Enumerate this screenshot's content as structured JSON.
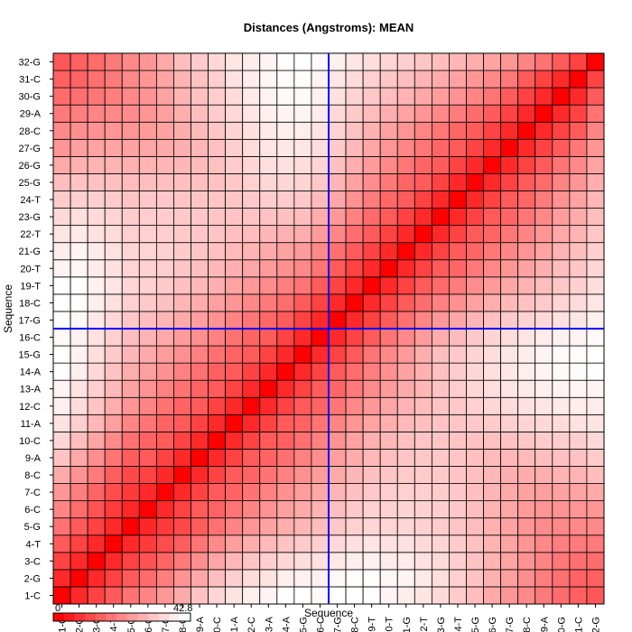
{
  "chart_data": {
    "type": "heatmap",
    "title": "Distances (Angstroms):  MEAN",
    "xlabel": "Sequence",
    "ylabel": "Sequence",
    "labels": [
      "1-C",
      "2-G",
      "3-C",
      "4-T",
      "5-G",
      "6-C",
      "7-C",
      "8-C",
      "9-A",
      "10-C",
      "11-A",
      "12-C",
      "13-A",
      "14-A",
      "15-G",
      "16-C",
      "17-G",
      "18-C",
      "19-T",
      "20-T",
      "21-G",
      "22-T",
      "23-G",
      "24-T",
      "25-G",
      "26-G",
      "27-G",
      "28-C",
      "29-A",
      "30-G",
      "31-C",
      "32-G"
    ],
    "value_range": [
      0,
      42.8
    ],
    "scale_min_label": "0",
    "scale_max_label": "42.8",
    "crosshair_after": "16-C",
    "colors": {
      "low": "#ff0000",
      "high": "#ffffff",
      "crosshair": "#0000ff",
      "grid": "#000000"
    },
    "matrix_note_omitted": false,
    "values": [
      [
        0,
        5.6,
        9.6,
        13.6,
        17.7,
        20.8,
        23.9,
        27.3,
        31.7,
        35.1,
        37.7,
        40,
        40.6,
        42.6,
        42.8,
        41.7,
        42.8,
        42.8,
        42.7,
        40.7,
        39.5,
        37.8,
        35.7,
        33.2,
        30.6,
        27.1,
        23.8,
        21.2,
        18.8,
        16.5,
        14.4,
        13
      ],
      [
        5.6,
        0,
        5.6,
        9.6,
        13.6,
        16.4,
        19.6,
        23.2,
        27,
        30.9,
        33.8,
        36.4,
        37.7,
        39.7,
        40.2,
        40.2,
        41.5,
        42.2,
        42.5,
        40.9,
        40.5,
        38.7,
        36.7,
        34.2,
        31.7,
        28.6,
        25.4,
        22.5,
        19.8,
        17.2,
        14.9,
        14.4
      ],
      [
        9.6,
        5.6,
        0,
        5.6,
        9.6,
        12.1,
        15.3,
        18.8,
        22.4,
        26.3,
        29.6,
        32.2,
        33.9,
        35.4,
        36.6,
        37.2,
        38.6,
        39.7,
        40.2,
        39.1,
        39,
        37.3,
        35.9,
        33.9,
        31.5,
        28.8,
        26.1,
        23.2,
        20.7,
        18.4,
        17.2,
        16.5
      ],
      [
        13.6,
        9.6,
        5.6,
        0,
        5.6,
        8.2,
        11.1,
        14.1,
        17.8,
        21.7,
        25.2,
        27.8,
        30,
        31.8,
        33.1,
        34.1,
        35.8,
        37.1,
        37.9,
        37.3,
        37.2,
        35.9,
        34.8,
        33.2,
        31.2,
        28.8,
        26.2,
        23.6,
        21.3,
        19.8,
        18.8,
        18.8
      ],
      [
        17.7,
        13.6,
        9.6,
        5.6,
        0,
        5.1,
        8.3,
        10.6,
        13.9,
        17.4,
        20.8,
        23.6,
        25.9,
        27.9,
        29.4,
        30.6,
        32.5,
        34.1,
        35.3,
        35.1,
        35.3,
        34.2,
        33.4,
        32.1,
        30.5,
        28.3,
        25.9,
        23.5,
        21.9,
        21.3,
        21.2,
        21.2
      ],
      [
        20.8,
        16.4,
        12.1,
        8.2,
        5.1,
        0,
        5.6,
        9.6,
        13.6,
        14.9,
        18,
        20.7,
        23.2,
        25.5,
        27.3,
        28.9,
        31.1,
        32.9,
        34.3,
        34.5,
        34.9,
        34.2,
        33.6,
        32.5,
        30.9,
        28.8,
        26.6,
        24.7,
        23.5,
        23.2,
        23.6,
        23.8
      ],
      [
        23.9,
        19.6,
        15.3,
        11.1,
        8.3,
        5.6,
        0,
        5.6,
        9.6,
        13.6,
        15.1,
        17.7,
        20.3,
        22.8,
        25,
        26.9,
        29.2,
        31.3,
        32.9,
        33.5,
        34.1,
        33.7,
        33.3,
        32.5,
        31.1,
        29.2,
        27.3,
        25.9,
        25.4,
        25.9,
        26.1,
        27.1
      ],
      [
        27.3,
        23.2,
        18.8,
        14.1,
        10.6,
        9.6,
        5.6,
        0,
        5.6,
        9.6,
        13.6,
        14.9,
        17.6,
        20.2,
        22.6,
        24.7,
        27.2,
        29.5,
        31.3,
        32.2,
        33,
        33,
        32.8,
        32.1,
        31,
        29.4,
        28.2,
        27.6,
        28,
        28.8,
        28.8,
        30.6
      ],
      [
        31.7,
        27,
        22.4,
        17.8,
        13.9,
        13.6,
        9.6,
        5.6,
        0,
        5.6,
        9.6,
        13.6,
        15,
        17.3,
        19.9,
        22.4,
        25.1,
        27.6,
        29.7,
        31,
        32.1,
        32.5,
        32.5,
        32.1,
        31.2,
        30.1,
        29.6,
        30,
        30.9,
        31.2,
        31.5,
        33.2
      ],
      [
        35.1,
        30.9,
        26.3,
        21.7,
        17.4,
        14.9,
        13.6,
        9.6,
        5.6,
        0,
        5.6,
        9.6,
        13.6,
        14.7,
        17.3,
        20.1,
        23,
        25.7,
        28.1,
        29.8,
        31.2,
        31.9,
        32.2,
        32,
        31.6,
        31.2,
        31.4,
        32.4,
        33.3,
        33.6,
        33.9,
        35.7
      ],
      [
        37.7,
        33.8,
        29.6,
        25.2,
        20.8,
        18,
        15.1,
        13.6,
        9.6,
        5.6,
        0,
        5.6,
        9.6,
        13.6,
        15,
        17.6,
        20.6,
        23.5,
        26.1,
        28.2,
        29.9,
        31.1,
        31.8,
        32.3,
        32.6,
        33.3,
        34,
        34.9,
        35.6,
        36.2,
        37.3,
        37.8
      ],
      [
        40,
        36.4,
        32.2,
        27.8,
        23.6,
        20.7,
        17.7,
        14.9,
        13.6,
        9.6,
        5.6,
        0,
        5.6,
        9.6,
        13.6,
        15.2,
        18.2,
        21.2,
        24.1,
        26.6,
        28.8,
        30.5,
        31.8,
        32.9,
        34.1,
        35.3,
        36.2,
        37.3,
        38,
        38.8,
        39.3,
        39.5
      ],
      [
        40.6,
        37.7,
        33.9,
        30,
        25.9,
        23.2,
        20.3,
        17.6,
        15,
        13.6,
        9.6,
        5.6,
        0,
        5.6,
        9.6,
        13.6,
        15.6,
        18.8,
        21.9,
        24.7,
        27.3,
        29.5,
        31.6,
        33.5,
        35.2,
        36.6,
        37.8,
        38.7,
        39.8,
        40.5,
        40.9,
        40.7
      ],
      [
        42.6,
        39.7,
        35.4,
        31.8,
        27.9,
        25.5,
        22.8,
        20.2,
        17.3,
        14.7,
        13.6,
        9.6,
        5.6,
        0,
        5.6,
        9.6,
        13.6,
        16.6,
        19.8,
        22.9,
        25.8,
        28.5,
        31.2,
        33.4,
        35.2,
        36.8,
        38.3,
        39.6,
        40.6,
        41.6,
        42,
        42.7
      ],
      [
        42.8,
        40.2,
        36.6,
        33.1,
        29.4,
        27.3,
        25,
        22.6,
        19.9,
        17.3,
        15,
        13.6,
        9.6,
        5.6,
        0,
        5.6,
        9.6,
        13.6,
        17.9,
        21.4,
        24.7,
        27.9,
        30.8,
        32.8,
        34.8,
        36.5,
        38.1,
        39.5,
        40.7,
        41.7,
        42.2,
        42.8
      ],
      [
        41.7,
        40.2,
        37.2,
        34.1,
        30.6,
        28.9,
        26.9,
        24.7,
        22.4,
        20.1,
        17.6,
        15.2,
        13.6,
        9.6,
        5.6,
        0,
        5.6,
        9.6,
        13.6,
        17.8,
        21.4,
        24.6,
        27.6,
        30.3,
        32.7,
        34.8,
        36.5,
        37.8,
        39.1,
        40.2,
        40.4,
        41.7
      ],
      [
        42.8,
        41.5,
        38.6,
        35.8,
        32.5,
        31.1,
        29.2,
        27.2,
        25.1,
        23,
        20.6,
        18.2,
        15.6,
        13.6,
        9.6,
        5.6,
        0,
        5.6,
        9.6,
        13.6,
        17.4,
        20.9,
        24,
        26.7,
        29.2,
        31.3,
        33.1,
        34.6,
        35.8,
        37.3,
        38.2,
        40
      ],
      [
        42.8,
        42.2,
        39.7,
        37.1,
        34.1,
        32.9,
        31.3,
        29.5,
        27.6,
        25.7,
        23.5,
        21.2,
        18.8,
        16.6,
        13.6,
        9.6,
        5.6,
        0,
        5.6,
        9.6,
        13.6,
        16.8,
        20,
        22.9,
        25.6,
        27.9,
        29.9,
        31.6,
        33.1,
        34.9,
        36.1,
        38.1
      ],
      [
        42.7,
        42.5,
        40.2,
        37.9,
        35.3,
        34.3,
        32.9,
        31.3,
        29.7,
        28.1,
        26.1,
        24.1,
        21.9,
        19.8,
        17.9,
        13.6,
        9.6,
        5.6,
        0,
        5.6,
        9.6,
        13.6,
        16.1,
        19.2,
        22.1,
        24.6,
        26.8,
        28.7,
        30.5,
        32.7,
        34.1,
        36.6
      ],
      [
        40.7,
        40.9,
        39.1,
        37.3,
        35.1,
        34.5,
        33.5,
        32.2,
        31,
        29.8,
        28.2,
        26.6,
        24.7,
        22.9,
        21.4,
        17.8,
        13.6,
        9.6,
        5.6,
        0,
        5.6,
        9.6,
        13.6,
        15.6,
        18.7,
        21.4,
        23.8,
        25.9,
        28.1,
        30.6,
        32.3,
        35.1
      ],
      [
        39.5,
        40.5,
        39,
        37.2,
        35.3,
        34.9,
        34.1,
        33,
        32.1,
        31.2,
        29.9,
        28.8,
        27.3,
        25.8,
        24.7,
        21.4,
        17.4,
        13.6,
        9.6,
        5.6,
        0,
        5.6,
        9.6,
        13.6,
        15.3,
        18.4,
        21,
        23.4,
        26,
        28.8,
        30.8,
        33.9
      ],
      [
        37.8,
        38.7,
        37.3,
        35.9,
        34.2,
        34.2,
        33.7,
        33,
        32.5,
        31.9,
        31.1,
        30.5,
        29.5,
        28.5,
        27.9,
        24.6,
        20.9,
        16.8,
        13.6,
        9.6,
        5.6,
        0,
        5.6,
        9.6,
        13.6,
        15.3,
        18.1,
        20.8,
        23.7,
        26.9,
        29.1,
        32.4
      ],
      [
        35.7,
        36.7,
        35.9,
        34.8,
        33.4,
        33.6,
        33.3,
        32.8,
        32.5,
        32.2,
        31.8,
        31.8,
        31.6,
        31.2,
        30.8,
        27.6,
        24,
        20,
        16.1,
        13.6,
        9.6,
        5.6,
        0,
        5.6,
        9.6,
        13.6,
        15.3,
        18.2,
        21.5,
        25,
        27.5,
        30.9
      ],
      [
        33.2,
        34.2,
        33.9,
        33.2,
        32.1,
        32.5,
        32.5,
        32.1,
        32.1,
        32,
        32.3,
        32.9,
        33.5,
        33.4,
        32.8,
        30.3,
        26.7,
        22.9,
        19.2,
        15.6,
        13.6,
        9.6,
        5.6,
        0,
        5.6,
        9.6,
        13.6,
        15.5,
        19.2,
        23,
        25.8,
        29.5
      ],
      [
        30.6,
        31.7,
        31.5,
        31.2,
        30.5,
        30.9,
        31.1,
        31,
        31.2,
        31.6,
        32.6,
        34.1,
        35.2,
        35.2,
        34.8,
        32.7,
        29.2,
        25.6,
        22.1,
        18.7,
        15.3,
        13.6,
        9.6,
        5.6,
        0,
        5.6,
        9.6,
        13.6,
        16.5,
        20.6,
        23.8,
        27.8
      ],
      [
        27.1,
        28.6,
        28.8,
        28.8,
        28.3,
        28.8,
        29.2,
        29.4,
        30.1,
        31.2,
        33.3,
        35.3,
        36.6,
        36.8,
        36.5,
        34.8,
        31.3,
        27.9,
        24.6,
        21.4,
        18.4,
        15.3,
        13.6,
        9.6,
        5.6,
        0,
        5.6,
        9.6,
        13.6,
        17.9,
        21.4,
        26
      ],
      [
        23.8,
        25.4,
        26.1,
        26.2,
        25.9,
        26.6,
        27.3,
        28.2,
        29.6,
        31.4,
        34,
        36.2,
        37.8,
        38.3,
        38.1,
        36.5,
        33.1,
        29.9,
        26.8,
        23.8,
        21,
        18.1,
        15.3,
        13.6,
        9.6,
        5.6,
        0,
        5.6,
        9.6,
        13.6,
        18.6,
        23.8
      ],
      [
        21.2,
        22.5,
        23.2,
        23.6,
        23.5,
        24.7,
        25.9,
        27.6,
        30,
        32.4,
        34.9,
        37.3,
        38.7,
        39.6,
        39.5,
        37.8,
        34.6,
        31.6,
        28.7,
        25.9,
        23.4,
        20.8,
        18.2,
        15.5,
        13.6,
        9.6,
        5.6,
        0,
        5.6,
        9.6,
        13.6,
        20.8
      ],
      [
        18.8,
        19.8,
        20.7,
        21.3,
        21.9,
        23.5,
        25.4,
        28,
        30.9,
        33.3,
        35.6,
        38,
        39.8,
        40.6,
        40.7,
        39.1,
        35.8,
        33.1,
        30.5,
        28.1,
        26,
        23.7,
        21.5,
        19.2,
        16.5,
        13.6,
        9.6,
        5.6,
        0,
        5.6,
        9.6,
        17.7
      ],
      [
        16.5,
        17.2,
        18.4,
        19.8,
        21.3,
        23.2,
        25.9,
        28.8,
        31.2,
        33.6,
        36.2,
        38.8,
        40.5,
        41.6,
        41.7,
        40.2,
        37.3,
        34.9,
        32.7,
        30.6,
        28.8,
        26.9,
        25,
        23,
        20.6,
        17.9,
        13.6,
        9.6,
        5.6,
        0,
        5.6,
        13.6
      ],
      [
        14.4,
        14.9,
        17.2,
        18.8,
        21.2,
        23.6,
        26.1,
        28.8,
        31.5,
        33.9,
        37.3,
        39.3,
        40.9,
        42,
        42.2,
        40.4,
        38.2,
        36.1,
        34.1,
        32.3,
        30.8,
        29.1,
        27.5,
        25.8,
        23.8,
        21.4,
        18.6,
        13.6,
        9.6,
        5.6,
        0,
        9.6
      ],
      [
        13,
        14.4,
        16.5,
        18.8,
        21.2,
        23.8,
        27.1,
        30.6,
        33.2,
        35.7,
        37.8,
        39.5,
        40.7,
        42.7,
        42.8,
        41.7,
        40,
        38.1,
        36.6,
        35.1,
        33.9,
        32.4,
        30.9,
        29.5,
        27.8,
        26,
        23.8,
        20.8,
        17.7,
        13.6,
        9.6,
        0
      ]
    ]
  }
}
